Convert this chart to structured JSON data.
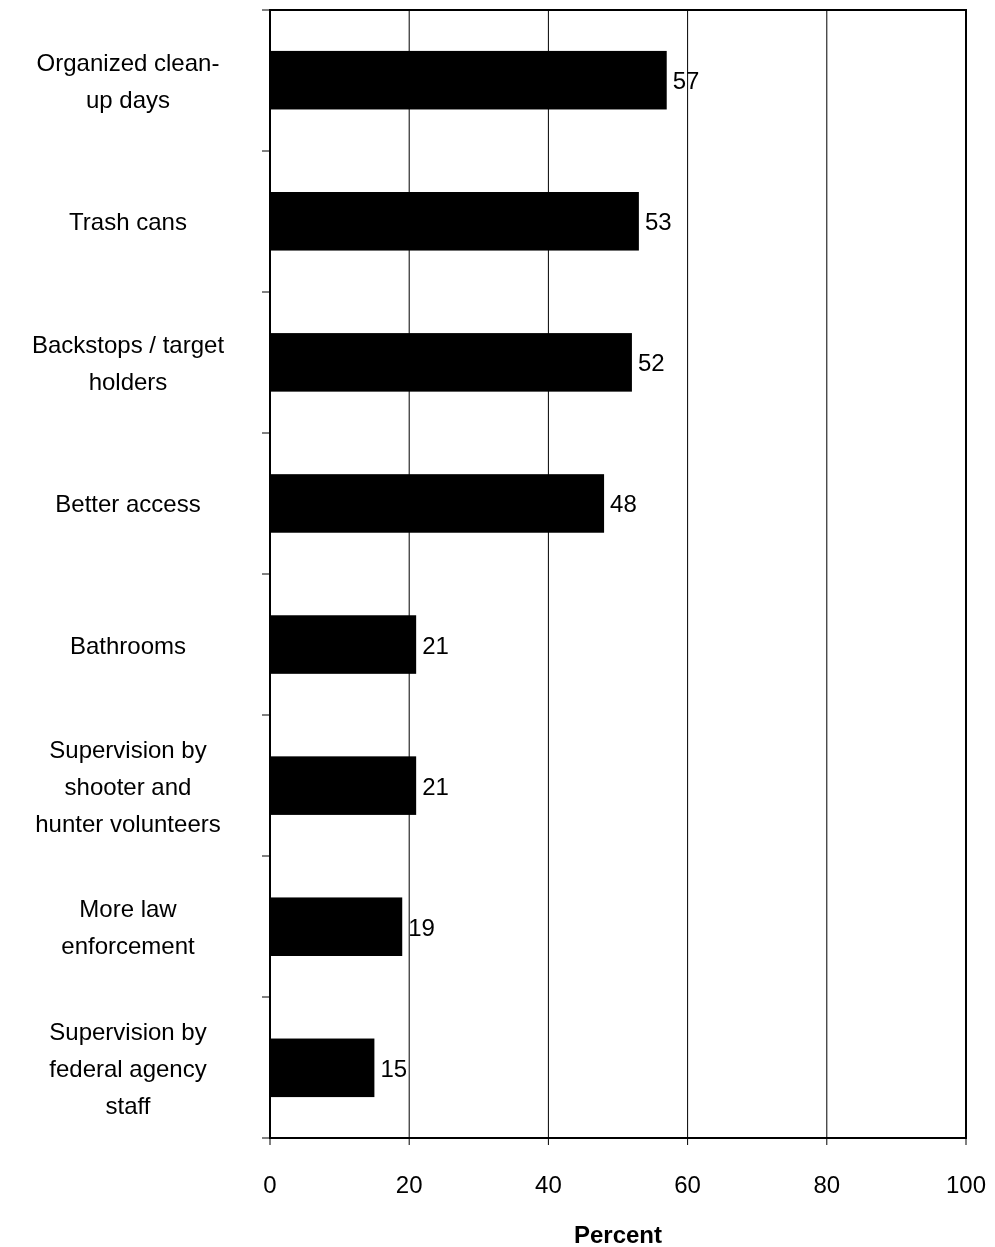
{
  "chart_data": {
    "type": "bar",
    "orientation": "horizontal",
    "xlabel": "Percent",
    "categories": [
      "Organized clean-\nup days",
      "Trash cans",
      "Backstops / target\nholders",
      "Better access",
      "Bathrooms",
      "Supervision by\nshooter and\nhunter volunteers",
      "More law\nenforcement",
      "Supervision by\nfederal agency\nstaff"
    ],
    "values": [
      57,
      53,
      52,
      48,
      21,
      21,
      19,
      15
    ],
    "color": "#000000",
    "xlim": [
      0,
      100
    ],
    "xticks": [
      0,
      20,
      40,
      60,
      80,
      100
    ],
    "grid": "x",
    "data_labels": true
  }
}
